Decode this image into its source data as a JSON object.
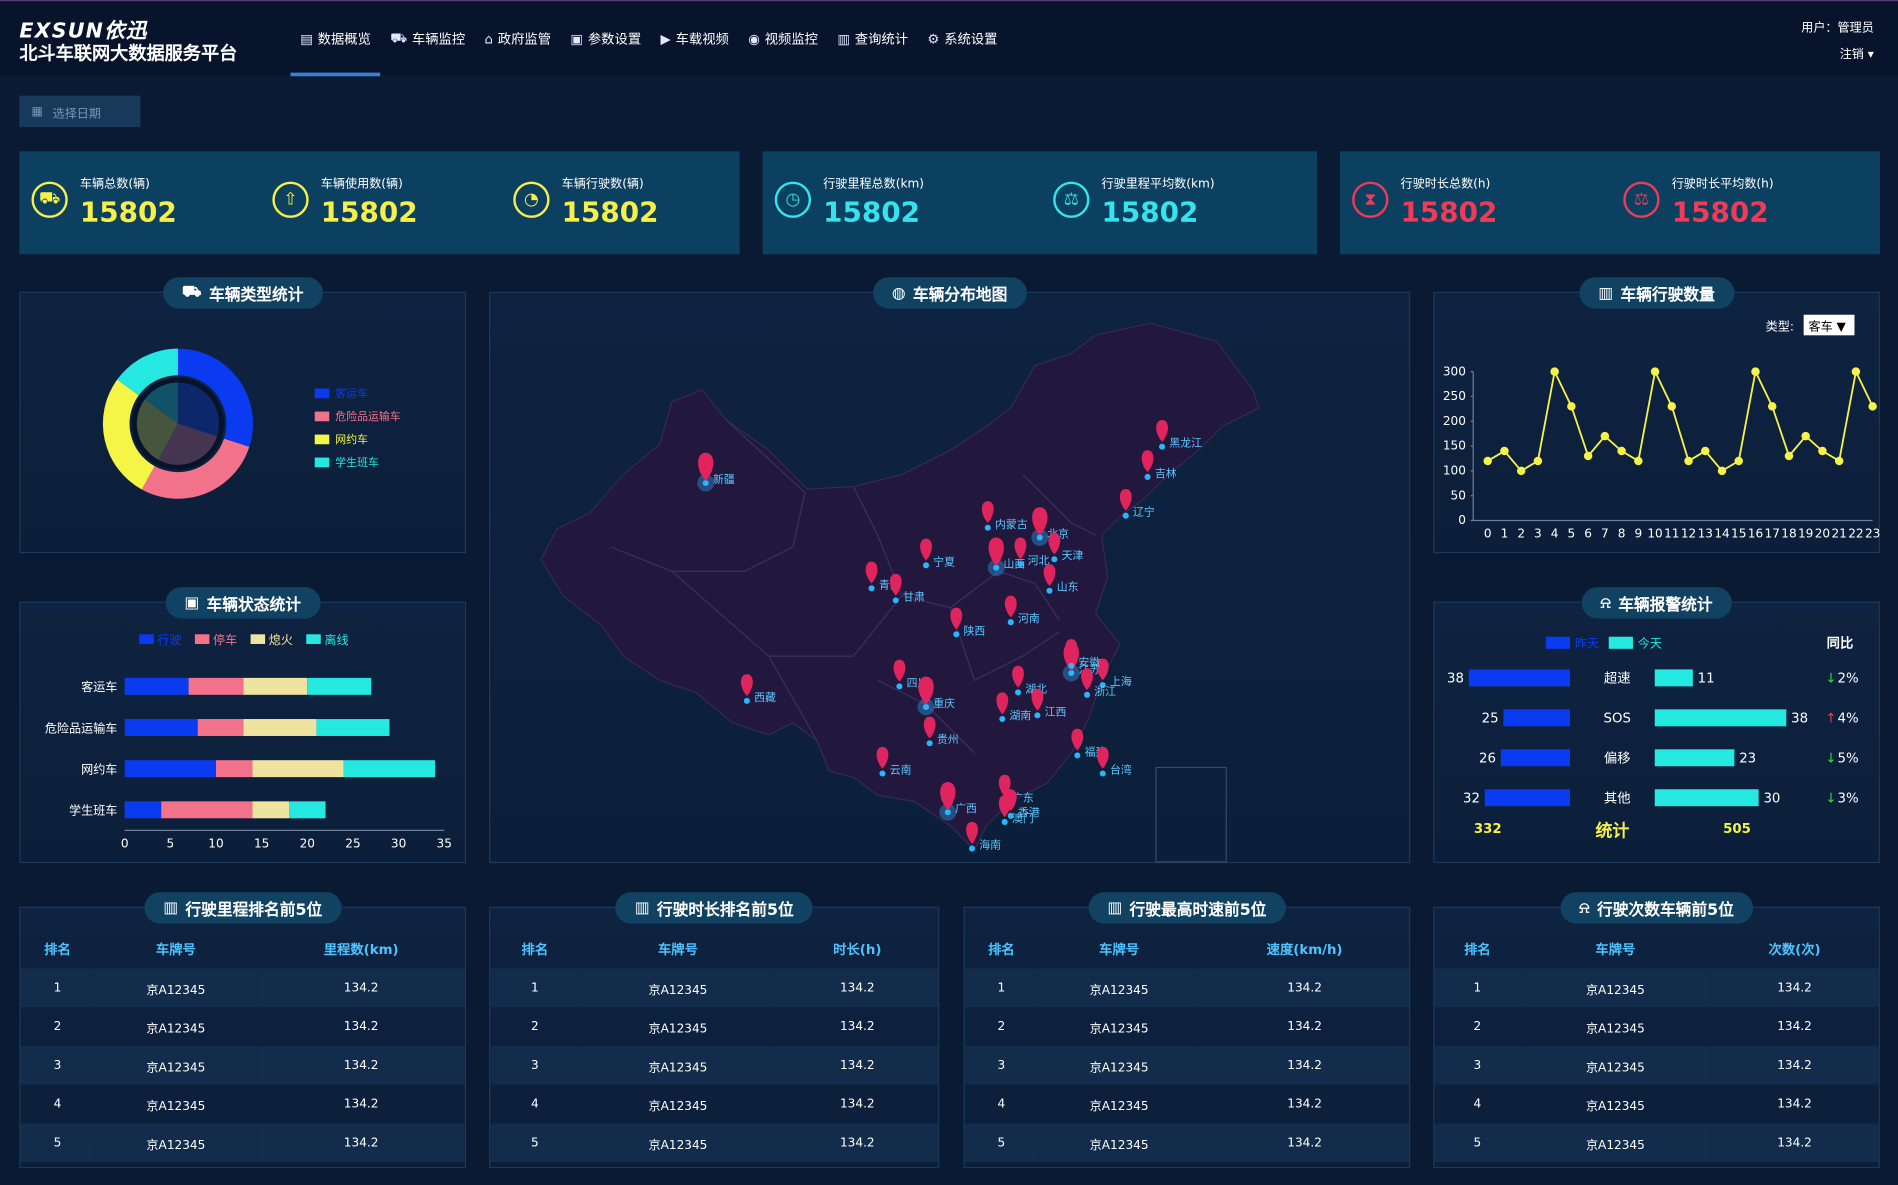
{
  "header": {
    "logo": "EXSUN依迅",
    "title": "北斗车联网大数据服务平台",
    "user": "用户：管理员",
    "logout": "注销"
  },
  "nav": [
    {
      "label": "数据概览",
      "icon": "▤",
      "active": true
    },
    {
      "label": "车辆监控",
      "icon": "⛟"
    },
    {
      "label": "政府监管",
      "icon": "⌂"
    },
    {
      "label": "参数设置",
      "icon": "▣"
    },
    {
      "label": "车载视频",
      "icon": "▶"
    },
    {
      "label": "视频监控",
      "icon": "◉"
    },
    {
      "label": "查询统计",
      "icon": "▥"
    },
    {
      "label": "系统设置",
      "icon": "⚙"
    }
  ],
  "date_placeholder": "选择日期",
  "stats": [
    {
      "label": "车辆总数(辆)",
      "value": "15802",
      "color": "#f7ef4a",
      "icon": "⛟"
    },
    {
      "label": "车辆使用数(辆)",
      "value": "15802",
      "color": "#f7ef4a",
      "icon": "⇧"
    },
    {
      "label": "车辆行驶数(辆)",
      "value": "15802",
      "color": "#f7ef4a",
      "icon": "◔"
    },
    {
      "label": "行驶里程总数(km)",
      "value": "15802",
      "color": "#35e3ee",
      "icon": "◷"
    },
    {
      "label": "行驶里程平均数(km)",
      "value": "15802",
      "color": "#35e3ee",
      "icon": "⚖"
    },
    {
      "label": "行驶时长总数(h)",
      "value": "15802",
      "color": "#ee3b57",
      "icon": "⧗"
    },
    {
      "label": "行驶时长平均数(h)",
      "value": "15802",
      "color": "#ee3b57",
      "icon": "⚖"
    }
  ],
  "panels": {
    "vehicle_type": "车辆类型统计",
    "vehicle_map": "车辆分布地图",
    "vehicle_trips": "车辆行驶数量",
    "vehicle_status": "车辆状态统计",
    "vehicle_alarm": "车辆报警统计",
    "mileage_rank": "行驶里程排名前5位",
    "duration_rank": "行驶时长排名前5位",
    "speed_rank": "行驶最高时速前5位",
    "trips_rank": "行驶次数车辆前5位"
  },
  "chart_data": [
    {
      "type": "pie",
      "title": "车辆类型统计",
      "categories": [
        "客运车",
        "危险品运输车",
        "网约车",
        "学生班车"
      ],
      "values": [
        30,
        28,
        27,
        15
      ],
      "colors": [
        "#0a3bf0",
        "#f2728b",
        "#f5f545",
        "#25e8e1"
      ]
    },
    {
      "type": "line",
      "title": "车辆行驶数量",
      "x": [
        0,
        1,
        2,
        3,
        4,
        5,
        6,
        7,
        8,
        9,
        10,
        11,
        12,
        13,
        14,
        15,
        16,
        17,
        18,
        19,
        20,
        21,
        22,
        23
      ],
      "values": [
        120,
        140,
        100,
        120,
        300,
        230,
        130,
        170,
        140,
        120,
        300,
        230,
        120,
        140,
        100,
        120,
        300,
        230,
        130,
        170,
        140,
        120,
        300,
        230
      ],
      "ylim": [
        0,
        300
      ],
      "yticks": [
        0,
        50,
        100,
        150,
        200,
        250,
        300
      ],
      "color": "#f7f24a",
      "filter_label": "类型:",
      "filter_value": "客车"
    },
    {
      "type": "bar",
      "title": "车辆状态统计",
      "orientation": "horizontal",
      "stacked": true,
      "categories": [
        "客运车",
        "危险品运输车",
        "网约车",
        "学生班车"
      ],
      "series": [
        {
          "name": "行驶",
          "values": [
            7,
            8,
            10,
            4
          ],
          "color": "#0a3bf0"
        },
        {
          "name": "停车",
          "values": [
            6,
            5,
            4,
            10
          ],
          "color": "#f2728b"
        },
        {
          "name": "熄火",
          "values": [
            7,
            8,
            10,
            4
          ],
          "color": "#efe3a0"
        },
        {
          "name": "离线",
          "values": [
            7,
            8,
            10,
            4
          ],
          "color": "#25e8e1"
        }
      ],
      "xlim": [
        0,
        35
      ],
      "xticks": [
        0,
        5,
        10,
        15,
        20,
        25,
        30,
        35
      ]
    }
  ],
  "alarm": {
    "legend": [
      "昨天",
      "今天"
    ],
    "ratio_header": "同比",
    "rows": [
      {
        "label": "超速",
        "yesterday": 38,
        "today": 11,
        "ratio": "2%",
        "dir": "down"
      },
      {
        "label": "SOS",
        "yesterday": 25,
        "today": 38,
        "ratio": "4%",
        "dir": "up"
      },
      {
        "label": "偏移",
        "yesterday": 26,
        "today": 23,
        "ratio": "5%",
        "dir": "down"
      },
      {
        "label": "其他",
        "yesterday": 32,
        "today": 30,
        "ratio": "3%",
        "dir": "down"
      }
    ],
    "total_label": "统计",
    "total_yesterday": "332",
    "total_today": "505"
  },
  "map": {
    "provinces": [
      "黑龙江",
      "吉林",
      "辽宁",
      "内蒙古",
      "北京",
      "天津",
      "宁夏",
      "山西",
      "河北",
      "山东",
      "青海",
      "甘肃",
      "陕西",
      "河南",
      "江苏",
      "上海",
      "浙江",
      "湖北",
      "安徽",
      "四川",
      "重庆",
      "西藏",
      "湖南",
      "江西",
      "贵州",
      "福建",
      "台湾",
      "云南",
      "广西",
      "广东",
      "香港",
      "澳门",
      "海南",
      "新疆"
    ]
  },
  "tables": [
    {
      "headers": [
        "排名",
        "车牌号",
        "里程数(km)"
      ],
      "rows": [
        [
          "1",
          "京A12345",
          "134.2"
        ],
        [
          "2",
          "京A12345",
          "134.2"
        ],
        [
          "3",
          "京A12345",
          "134.2"
        ],
        [
          "4",
          "京A12345",
          "134.2"
        ],
        [
          "5",
          "京A12345",
          "134.2"
        ]
      ]
    },
    {
      "headers": [
        "排名",
        "车牌号",
        "时长(h)"
      ],
      "rows": [
        [
          "1",
          "京A12345",
          "134.2"
        ],
        [
          "2",
          "京A12345",
          "134.2"
        ],
        [
          "3",
          "京A12345",
          "134.2"
        ],
        [
          "4",
          "京A12345",
          "134.2"
        ],
        [
          "5",
          "京A12345",
          "134.2"
        ]
      ]
    },
    {
      "headers": [
        "排名",
        "车牌号",
        "速度(km/h)"
      ],
      "rows": [
        [
          "1",
          "京A12345",
          "134.2"
        ],
        [
          "2",
          "京A12345",
          "134.2"
        ],
        [
          "3",
          "京A12345",
          "134.2"
        ],
        [
          "4",
          "京A12345",
          "134.2"
        ],
        [
          "5",
          "京A12345",
          "134.2"
        ]
      ]
    },
    {
      "headers": [
        "排名",
        "车牌号",
        "次数(次)"
      ],
      "rows": [
        [
          "1",
          "京A12345",
          "134.2"
        ],
        [
          "2",
          "京A12345",
          "134.2"
        ],
        [
          "3",
          "京A12345",
          "134.2"
        ],
        [
          "4",
          "京A12345",
          "134.2"
        ],
        [
          "5",
          "京A12345",
          "134.2"
        ]
      ]
    }
  ]
}
